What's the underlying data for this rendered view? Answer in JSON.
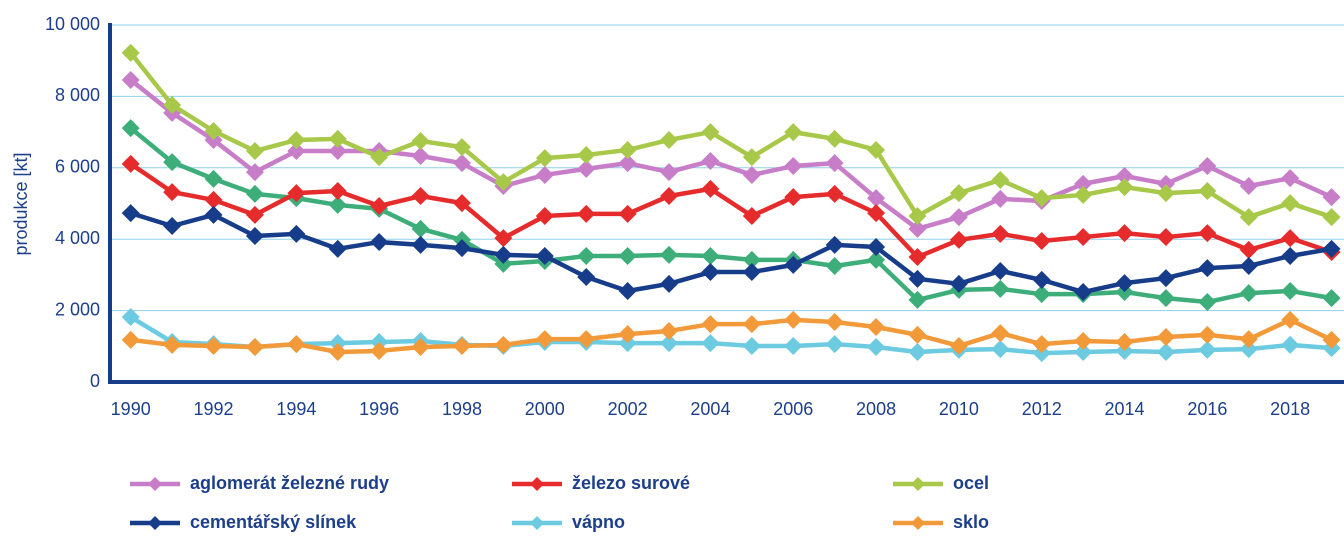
{
  "chart_data": {
    "type": "line",
    "y_label": "produkce [kt]",
    "x": [
      1990,
      1991,
      1992,
      1993,
      1994,
      1995,
      1996,
      1997,
      1998,
      1999,
      2000,
      2001,
      2002,
      2003,
      2004,
      2005,
      2006,
      2007,
      2008,
      2009,
      2010,
      2011,
      2012,
      2013,
      2014,
      2015,
      2016,
      2017,
      2018,
      2019
    ],
    "xlim": [
      1989.5,
      2019.3
    ],
    "xticks": [
      1990,
      1992,
      1994,
      1996,
      1998,
      2000,
      2002,
      2004,
      2006,
      2008,
      2010,
      2012,
      2014,
      2016,
      2018
    ],
    "ylim": [
      0,
      10000
    ],
    "yticks": [
      0,
      {
        "value": 2000,
        "label": "2 000"
      },
      {
        "value": 4000,
        "label": "4 000"
      },
      {
        "value": 6000,
        "label": "6 000"
      },
      {
        "value": 8000,
        "label": "8 000"
      },
      {
        "value": 10000,
        "label": "10 000"
      }
    ],
    "grid": true,
    "series": [
      {
        "color": "#3dae7a",
        "values": [
          7110,
          6160,
          5690,
          5270,
          5150,
          4960,
          4850,
          4290,
          3980,
          3310,
          3390,
          3530,
          3530,
          3560,
          3530,
          3420,
          3420,
          3250,
          3420,
          2300,
          2580,
          2610,
          2460,
          2460,
          2520,
          2350,
          2240,
          2490,
          2550,
          2350
        ]
      },
      {
        "name": "aglomerát železné rudy",
        "color": "#c77dc7",
        "values": [
          8460,
          7540,
          6780,
          5880,
          6470,
          6470,
          6470,
          6330,
          6130,
          5490,
          5800,
          5970,
          6130,
          5880,
          6190,
          5800,
          6050,
          6130,
          5150,
          4290,
          4620,
          5130,
          5070,
          5550,
          5770,
          5550,
          6050,
          5490,
          5710,
          5180
        ]
      },
      {
        "name": "železo surové",
        "color": "#e52b2b",
        "values": [
          6110,
          5320,
          5100,
          4680,
          5290,
          5350,
          4930,
          5210,
          5010,
          4030,
          4650,
          4710,
          4710,
          5210,
          5410,
          4650,
          5180,
          5270,
          4730,
          3500,
          3980,
          4150,
          3950,
          4060,
          4170,
          4060,
          4170,
          3700,
          4030,
          3640
        ]
      },
      {
        "name": "ocel",
        "color": "#a8c84a",
        "values": [
          9220,
          7760,
          7030,
          6470,
          6780,
          6810,
          6300,
          6750,
          6580,
          5600,
          6270,
          6360,
          6500,
          6780,
          7000,
          6300,
          7000,
          6810,
          6500,
          4650,
          5290,
          5660,
          5150,
          5240,
          5460,
          5290,
          5350,
          4620,
          5010,
          4620
        ]
      },
      {
        "name": "cementářský slínek",
        "color": "#173d8a",
        "values": [
          4730,
          4370,
          4680,
          4090,
          4150,
          3730,
          3920,
          3840,
          3750,
          3560,
          3530,
          2940,
          2550,
          2750,
          3080,
          3080,
          3280,
          3840,
          3780,
          2890,
          2750,
          3110,
          2860,
          2520,
          2770,
          2910,
          3190,
          3250,
          3530,
          3730
        ]
      },
      {
        "name": "vápno",
        "color": "#6ccbe0",
        "values": [
          1820,
          1120,
          1060,
          980,
          1060,
          1090,
          1120,
          1150,
          1040,
          1010,
          1120,
          1120,
          1090,
          1090,
          1090,
          1010,
          1010,
          1060,
          980,
          840,
          900,
          920,
          810,
          840,
          870,
          840,
          900,
          920,
          1040,
          950
        ]
      },
      {
        "name": "sklo",
        "color": "#f29a3a",
        "values": [
          1180,
          1040,
          1010,
          980,
          1060,
          840,
          870,
          980,
          1010,
          1040,
          1200,
          1200,
          1340,
          1430,
          1620,
          1620,
          1740,
          1680,
          1540,
          1320,
          1010,
          1370,
          1060,
          1150,
          1120,
          1260,
          1320,
          1200,
          1740,
          1180
        ]
      }
    ]
  }
}
